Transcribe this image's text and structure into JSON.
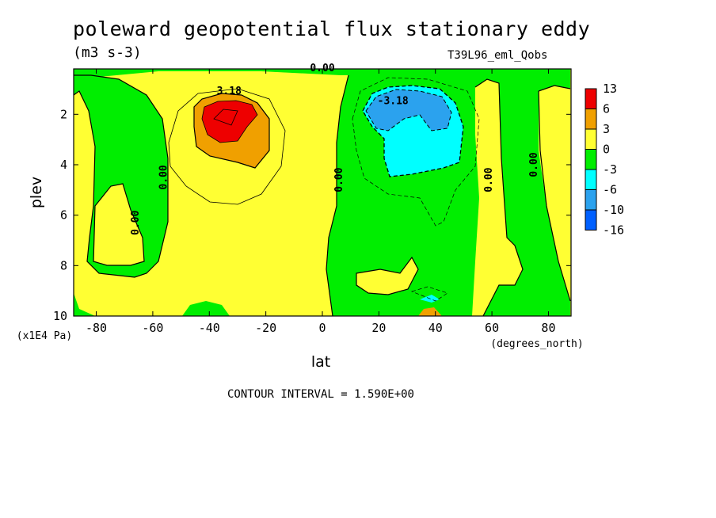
{
  "header": {
    "title": "poleward geopotential flux stationary eddy",
    "units": "(m3 s-3)",
    "run_name": "T39L96_eml_Qobs"
  },
  "footer": {
    "contour_interval": "CONTOUR INTERVAL = 1.590E+00"
  },
  "chart_data": {
    "type": "heatmap",
    "title": "poleward geopotential flux stationary eddy",
    "xlabel": "lat",
    "xunits": "(degrees_north)",
    "ylabel": "plev",
    "yunits": "(x1E4 Pa)",
    "xlim": [
      -88,
      88
    ],
    "ylim": [
      10,
      0.2
    ],
    "x_ticks": [
      -80,
      -60,
      -40,
      -20,
      0,
      20,
      40,
      60,
      80
    ],
    "x_tick_labels": [
      "-80",
      "-60",
      "-40",
      "-20",
      "0",
      "20",
      "40",
      "60",
      "80"
    ],
    "y_ticks": [
      2,
      4,
      6,
      8,
      10
    ],
    "y_tick_labels": [
      "2",
      "4",
      "6",
      "8",
      "10"
    ],
    "colorbar": {
      "labels": [
        "13",
        "6",
        "3",
        "0",
        "-3",
        "-6",
        "-10",
        "-16"
      ],
      "colors": [
        "#ee0000",
        "#f0a000",
        "#ffff33",
        "#00ee00",
        "#00ffff",
        "#2ba2ee",
        "#0060ff"
      ]
    },
    "contour_labels": [
      {
        "text": "3.18",
        "x": -33,
        "y": 1.2
      },
      {
        "text": "-3.18",
        "x": 25,
        "y": 1.6
      },
      {
        "text": "0.00",
        "x": 0,
        "y": 0.3
      },
      {
        "text": "0.00",
        "x": -55,
        "y": 4.5
      },
      {
        "text": "0.00",
        "x": -65,
        "y": 6.3
      },
      {
        "text": "0.00",
        "x": 7,
        "y": 4.6
      },
      {
        "text": "0.00",
        "x": 60,
        "y": 4.6
      },
      {
        "text": "0.00",
        "x": 76,
        "y": 4.0
      }
    ],
    "regions": [
      {
        "name": "positive-max",
        "value_range": "6 to 13",
        "center": [
          -35,
          2.2
        ]
      },
      {
        "name": "negative-min",
        "value_range": "-10 to -6",
        "center": [
          30,
          1.8
        ]
      }
    ]
  }
}
